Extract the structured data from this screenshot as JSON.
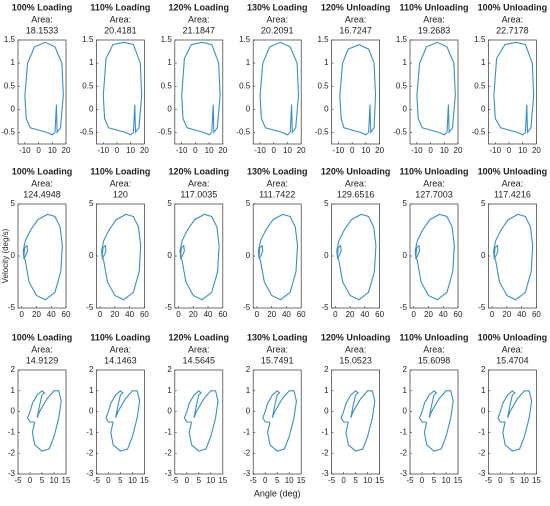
{
  "chart_data": [
    {
      "type": "line",
      "title": "100% Loading",
      "subtitle": "Area:",
      "area": 18.1533,
      "color": "#3a8fc4",
      "xlim": [
        -15,
        20
      ],
      "ylim": [
        -0.75,
        1.5
      ],
      "xticks": [
        -10,
        0,
        10,
        20
      ],
      "yticks": [
        -0.5,
        0,
        0.5,
        1,
        1.5
      ],
      "x": [
        12,
        13,
        13.5,
        16,
        18,
        17,
        12,
        5,
        -3,
        -8,
        -10,
        -9,
        -6,
        0,
        6,
        10,
        12
      ],
      "values": [
        -0.5,
        0.1,
        -0.5,
        -0.4,
        0.3,
        1.0,
        1.35,
        1.45,
        1.35,
        1.0,
        0.3,
        -0.2,
        -0.4,
        -0.45,
        -0.5,
        -0.55,
        -0.5
      ]
    },
    {
      "type": "line",
      "title": "110% Loading",
      "subtitle": "Area:",
      "area": 20.4181,
      "color": "#3a8fc4",
      "xlim": [
        -15,
        20
      ],
      "ylim": [
        -0.75,
        1.5
      ],
      "xticks": [
        -10,
        0,
        10,
        20
      ],
      "yticks": [
        -0.5,
        0,
        0.5,
        1,
        1.5
      ],
      "x": [
        12,
        13,
        13.5,
        16,
        18,
        17,
        12,
        5,
        -3,
        -8,
        -10,
        -9,
        -6,
        0,
        6,
        10,
        12
      ],
      "values": [
        -0.5,
        0.1,
        -0.5,
        -0.4,
        0.3,
        1.0,
        1.4,
        1.45,
        1.4,
        1.1,
        0.3,
        -0.2,
        -0.4,
        -0.45,
        -0.5,
        -0.55,
        -0.5
      ]
    },
    {
      "type": "line",
      "title": "120% Loading",
      "subtitle": "Area:",
      "area": 21.1847,
      "color": "#3a8fc4",
      "xlim": [
        -15,
        20
      ],
      "ylim": [
        -0.75,
        1.5
      ],
      "xticks": [
        -10,
        0,
        10,
        20
      ],
      "yticks": [
        -0.5,
        0,
        0.5,
        1,
        1.5
      ],
      "x": [
        12,
        13,
        13.5,
        16,
        18,
        17,
        12,
        5,
        -3,
        -8,
        -10,
        -9,
        -6,
        0,
        6,
        10,
        12
      ],
      "values": [
        -0.5,
        0.1,
        -0.5,
        -0.4,
        0.3,
        1.0,
        1.4,
        1.45,
        1.4,
        1.1,
        0.3,
        -0.2,
        -0.4,
        -0.45,
        -0.5,
        -0.55,
        -0.5
      ]
    },
    {
      "type": "line",
      "title": "130% Loading",
      "subtitle": "Area:",
      "area": 20.2091,
      "color": "#3a8fc4",
      "xlim": [
        -15,
        20
      ],
      "ylim": [
        -0.75,
        1.5
      ],
      "xticks": [
        -10,
        0,
        10,
        20
      ],
      "yticks": [
        -0.5,
        0,
        0.5,
        1,
        1.5
      ],
      "x": [
        12,
        13,
        13.5,
        16,
        18,
        17,
        12,
        5,
        -3,
        -8,
        -10,
        -9,
        -6,
        0,
        6,
        10,
        12
      ],
      "values": [
        -0.5,
        0.1,
        -0.5,
        -0.4,
        0.3,
        1.0,
        1.35,
        1.45,
        1.35,
        1.0,
        0.3,
        -0.2,
        -0.4,
        -0.45,
        -0.5,
        -0.55,
        -0.5
      ]
    },
    {
      "type": "line",
      "title": "120% Unloading",
      "subtitle": "Area:",
      "area": 16.7247,
      "color": "#3a8fc4",
      "xlim": [
        -15,
        20
      ],
      "ylim": [
        -0.75,
        1.5
      ],
      "xticks": [
        -10,
        0,
        10,
        20
      ],
      "yticks": [
        -0.5,
        0,
        0.5,
        1,
        1.5
      ],
      "x": [
        12,
        13,
        13.5,
        16,
        17,
        16,
        12,
        5,
        -3,
        -7,
        -9,
        -8,
        -6,
        0,
        6,
        10,
        12
      ],
      "values": [
        -0.5,
        0.1,
        -0.5,
        -0.4,
        0.3,
        1.0,
        1.3,
        1.4,
        1.3,
        1.0,
        0.3,
        -0.2,
        -0.4,
        -0.45,
        -0.5,
        -0.55,
        -0.5
      ]
    },
    {
      "type": "line",
      "title": "110% Unloading",
      "subtitle": "Area:",
      "area": 19.2683,
      "color": "#3a8fc4",
      "xlim": [
        -15,
        20
      ],
      "ylim": [
        -0.75,
        1.5
      ],
      "xticks": [
        -10,
        0,
        10,
        20
      ],
      "yticks": [
        -0.5,
        0,
        0.5,
        1,
        1.5
      ],
      "x": [
        12,
        13,
        13.5,
        16,
        18,
        17,
        12,
        5,
        -3,
        -8,
        -10,
        -9,
        -6,
        0,
        6,
        10,
        12
      ],
      "values": [
        -0.5,
        0.1,
        -0.5,
        -0.4,
        0.3,
        1.0,
        1.35,
        1.45,
        1.35,
        1.0,
        0.3,
        -0.2,
        -0.4,
        -0.45,
        -0.5,
        -0.55,
        -0.5
      ]
    },
    {
      "type": "line",
      "title": "100% Unloading",
      "subtitle": "Area:",
      "area": 22.7178,
      "color": "#3a8fc4",
      "xlim": [
        -15,
        20
      ],
      "ylim": [
        -0.75,
        1.5
      ],
      "xticks": [
        -10,
        0,
        10,
        20
      ],
      "yticks": [
        -0.5,
        0,
        0.5,
        1,
        1.5
      ],
      "x": [
        12,
        13,
        13.5,
        16,
        18,
        17,
        12,
        5,
        -3,
        -9,
        -11,
        -10,
        -6,
        0,
        6,
        10,
        12
      ],
      "values": [
        -0.5,
        0.1,
        -0.5,
        -0.4,
        0.3,
        1.0,
        1.4,
        1.45,
        1.4,
        1.1,
        0.3,
        -0.2,
        -0.4,
        -0.45,
        -0.5,
        -0.55,
        -0.5
      ]
    },
    {
      "type": "line",
      "title": "100% Loading",
      "subtitle": "Area:",
      "area": 124.4948,
      "ylabel": "Velocity (deg/s)",
      "color": "#3a8fc4",
      "xlim": [
        -5,
        60
      ],
      "ylim": [
        -5,
        5
      ],
      "xticks": [
        0,
        20,
        40,
        60
      ],
      "yticks": [
        -5,
        0,
        5
      ],
      "x": [
        5,
        8,
        7,
        4,
        3,
        5,
        10,
        20,
        32,
        45,
        53,
        55,
        52,
        45,
        35,
        22,
        12,
        5,
        2,
        3,
        5
      ],
      "values": [
        0,
        0.5,
        1,
        0.8,
        0,
        -0.5,
        -2.5,
        -3.8,
        -4.2,
        -3.5,
        -1.5,
        1,
        2.8,
        3.8,
        4,
        3.5,
        2.5,
        1.5,
        0.5,
        -0.2,
        0
      ]
    },
    {
      "type": "line",
      "title": "110% Loading",
      "subtitle": "Area:",
      "area": 120,
      "color": "#3a8fc4",
      "xlim": [
        -5,
        60
      ],
      "ylim": [
        -5,
        5
      ],
      "xticks": [
        0,
        20,
        40,
        60
      ],
      "yticks": [
        -5,
        0,
        5
      ],
      "x": [
        5,
        8,
        7,
        4,
        3,
        5,
        10,
        20,
        32,
        45,
        53,
        55,
        52,
        45,
        35,
        22,
        12,
        5,
        2,
        3,
        5
      ],
      "values": [
        0,
        0.5,
        1,
        0.8,
        0,
        -0.5,
        -2.5,
        -3.8,
        -4.2,
        -3.5,
        -1.5,
        1,
        2.8,
        3.8,
        4,
        3.5,
        2.5,
        1.5,
        0.5,
        -0.2,
        0
      ]
    },
    {
      "type": "line",
      "title": "120% Loading",
      "subtitle": "Area:",
      "area": 117.0035,
      "color": "#3a8fc4",
      "xlim": [
        -5,
        60
      ],
      "ylim": [
        -5,
        5
      ],
      "xticks": [
        0,
        20,
        40,
        60
      ],
      "yticks": [
        -5,
        0,
        5
      ],
      "x": [
        5,
        8,
        7,
        4,
        3,
        5,
        10,
        20,
        32,
        45,
        53,
        55,
        52,
        45,
        35,
        22,
        12,
        5,
        2,
        3,
        5
      ],
      "values": [
        0,
        0.5,
        1,
        0.8,
        0,
        -0.5,
        -2.5,
        -3.8,
        -4.2,
        -3.5,
        -1.5,
        1,
        2.8,
        3.8,
        4,
        3.5,
        2.5,
        1.5,
        0.5,
        -0.2,
        0
      ]
    },
    {
      "type": "line",
      "title": "130% Loading",
      "subtitle": "Area:",
      "area": 111.7422,
      "color": "#3a8fc4",
      "xlim": [
        -5,
        60
      ],
      "ylim": [
        -5,
        5
      ],
      "xticks": [
        0,
        20,
        40,
        60
      ],
      "yticks": [
        -5,
        0,
        5
      ],
      "x": [
        5,
        8,
        7,
        4,
        3,
        5,
        10,
        20,
        32,
        45,
        53,
        55,
        52,
        45,
        35,
        22,
        12,
        5,
        2,
        3,
        5
      ],
      "values": [
        0,
        0.5,
        1,
        0.8,
        0,
        -0.5,
        -2.5,
        -3.8,
        -4.2,
        -3.5,
        -1.5,
        1,
        2.8,
        3.8,
        4,
        3.5,
        2.5,
        1.5,
        0.5,
        -0.2,
        0
      ]
    },
    {
      "type": "line",
      "title": "120% Unloading",
      "subtitle": "Area:",
      "area": 129.6516,
      "color": "#3a8fc4",
      "xlim": [
        -5,
        60
      ],
      "ylim": [
        -5,
        5
      ],
      "xticks": [
        0,
        20,
        40,
        60
      ],
      "yticks": [
        -5,
        0,
        5
      ],
      "x": [
        5,
        8,
        7,
        4,
        3,
        5,
        10,
        20,
        32,
        45,
        53,
        55,
        52,
        45,
        35,
        22,
        12,
        5,
        2,
        3,
        5
      ],
      "values": [
        0,
        0.5,
        1,
        0.8,
        0,
        -0.5,
        -2.5,
        -3.8,
        -4.2,
        -3.5,
        -1.5,
        1,
        2.8,
        3.8,
        4,
        3.5,
        2.5,
        1.5,
        0.5,
        -0.2,
        0
      ]
    },
    {
      "type": "line",
      "title": "110% Unloading",
      "subtitle": "Area:",
      "area": 127.7003,
      "color": "#3a8fc4",
      "xlim": [
        -5,
        60
      ],
      "ylim": [
        -5,
        5
      ],
      "xticks": [
        0,
        20,
        40,
        60
      ],
      "yticks": [
        -5,
        0,
        5
      ],
      "x": [
        5,
        8,
        7,
        4,
        3,
        5,
        10,
        20,
        32,
        45,
        53,
        55,
        52,
        45,
        35,
        22,
        12,
        5,
        2,
        3,
        5
      ],
      "values": [
        0,
        0.5,
        1,
        0.8,
        0,
        -0.5,
        -2.5,
        -3.8,
        -4.2,
        -3.5,
        -1.5,
        1,
        2.8,
        3.8,
        4,
        3.5,
        2.5,
        1.5,
        0.5,
        -0.2,
        0
      ]
    },
    {
      "type": "line",
      "title": "100% Unloading",
      "subtitle": "Area:",
      "area": 117.4216,
      "color": "#3a8fc4",
      "xlim": [
        -5,
        60
      ],
      "ylim": [
        -5,
        5
      ],
      "xticks": [
        0,
        20,
        40,
        60
      ],
      "yticks": [
        -5,
        0,
        5
      ],
      "x": [
        5,
        8,
        7,
        4,
        3,
        5,
        10,
        20,
        32,
        45,
        53,
        55,
        52,
        45,
        35,
        22,
        12,
        5,
        2,
        3,
        5
      ],
      "values": [
        0,
        0.5,
        1,
        0.8,
        0,
        -0.5,
        -2.5,
        -3.8,
        -4.2,
        -3.5,
        -1.5,
        1,
        2.8,
        3.8,
        4,
        3.5,
        2.5,
        1.5,
        0.5,
        -0.2,
        0
      ]
    },
    {
      "type": "line",
      "title": "100% Loading",
      "subtitle": "Area:",
      "area": 14.9129,
      "color": "#3a8fc4",
      "xlim": [
        -5,
        15
      ],
      "ylim": [
        -3,
        2
      ],
      "xticks": [
        -5,
        0,
        5,
        10,
        15
      ],
      "yticks": [
        -3,
        -2,
        -1,
        0,
        1,
        2
      ],
      "x": [
        2,
        1,
        2,
        5,
        8,
        10,
        12,
        13,
        12,
        10,
        7,
        4,
        3,
        4,
        5,
        6,
        5,
        3,
        1,
        0,
        -1,
        0,
        2
      ],
      "values": [
        -0.5,
        -1,
        -1.6,
        -1.9,
        -1.8,
        -1.2,
        -0.3,
        0.5,
        1,
        1,
        0.6,
        0,
        -0.3,
        0.3,
        0.8,
        0.9,
        1.0,
        0.8,
        0.4,
        0,
        -0.3,
        -0.5,
        -0.5
      ]
    },
    {
      "type": "line",
      "title": "110% Loading",
      "subtitle": "Area:",
      "area": 14.1463,
      "color": "#3a8fc4",
      "xlim": [
        -5,
        15
      ],
      "ylim": [
        -3,
        2
      ],
      "xticks": [
        -5,
        0,
        5,
        10,
        15
      ],
      "yticks": [
        -3,
        -2,
        -1,
        0,
        1,
        2
      ],
      "x": [
        2,
        1,
        2,
        5,
        8,
        10,
        12,
        13,
        12,
        10,
        7,
        4,
        3,
        4,
        5,
        6,
        5,
        3,
        1,
        0,
        -1,
        0,
        2
      ],
      "values": [
        -0.5,
        -1,
        -1.6,
        -1.9,
        -1.8,
        -1.2,
        -0.3,
        0.5,
        1,
        1,
        0.6,
        0,
        -0.3,
        0.3,
        0.8,
        0.9,
        1.0,
        0.8,
        0.4,
        0,
        -0.3,
        -0.5,
        -0.5
      ]
    },
    {
      "type": "line",
      "title": "120% Loading",
      "subtitle": "Area:",
      "area": 14.5645,
      "color": "#3a8fc4",
      "xlim": [
        -5,
        15
      ],
      "ylim": [
        -3,
        2
      ],
      "xticks": [
        -5,
        0,
        5,
        10,
        15
      ],
      "yticks": [
        -3,
        -2,
        -1,
        0,
        1,
        2
      ],
      "x": [
        2,
        1,
        2,
        5,
        8,
        10,
        12,
        13,
        12,
        10,
        7,
        4,
        3,
        4,
        5,
        6,
        5,
        3,
        1,
        0,
        -1,
        0,
        2
      ],
      "values": [
        -0.5,
        -1,
        -1.6,
        -1.9,
        -1.8,
        -1.2,
        -0.3,
        0.5,
        1,
        1,
        0.6,
        0,
        -0.3,
        0.3,
        0.8,
        0.9,
        1.0,
        0.8,
        0.4,
        0,
        -0.3,
        -0.5,
        -0.5
      ]
    },
    {
      "type": "line",
      "title": "130% Loading",
      "subtitle": "Area:",
      "area": 15.7491,
      "xlabel": "Angle (deg)",
      "color": "#3a8fc4",
      "xlim": [
        -5,
        15
      ],
      "ylim": [
        -3,
        2
      ],
      "xticks": [
        -5,
        0,
        5,
        10,
        15
      ],
      "yticks": [
        -3,
        -2,
        -1,
        0,
        1,
        2
      ],
      "x": [
        2,
        1,
        2,
        5,
        8,
        10,
        12,
        13,
        12,
        10,
        7,
        4,
        3,
        4,
        5,
        6,
        5,
        3,
        1,
        0,
        -1,
        0,
        2
      ],
      "values": [
        -0.5,
        -1,
        -1.6,
        -1.9,
        -1.8,
        -1.2,
        -0.3,
        0.5,
        1,
        1,
        0.6,
        0,
        -0.3,
        0.3,
        0.8,
        0.9,
        1.0,
        0.8,
        0.4,
        0,
        -0.3,
        -0.5,
        -0.5
      ]
    },
    {
      "type": "line",
      "title": "120% Unloading",
      "subtitle": "Area:",
      "area": 15.0523,
      "color": "#3a8fc4",
      "xlim": [
        -5,
        15
      ],
      "ylim": [
        -3,
        2
      ],
      "xticks": [
        -5,
        0,
        5,
        10,
        15
      ],
      "yticks": [
        -3,
        -2,
        -1,
        0,
        1,
        2
      ],
      "x": [
        2,
        1,
        2,
        5,
        8,
        10,
        12,
        13,
        12,
        10,
        7,
        4,
        3,
        4,
        5,
        6,
        5,
        3,
        1,
        0,
        -1,
        0,
        2
      ],
      "values": [
        -0.5,
        -1,
        -1.6,
        -1.9,
        -1.8,
        -1.2,
        -0.3,
        0.5,
        1,
        1,
        0.6,
        0,
        -0.3,
        0.3,
        0.8,
        0.9,
        1.0,
        0.8,
        0.4,
        0,
        -0.3,
        -0.5,
        -0.5
      ]
    },
    {
      "type": "line",
      "title": "110% Unloading",
      "subtitle": "Area:",
      "area": 15.6098,
      "color": "#3a8fc4",
      "xlim": [
        -5,
        15
      ],
      "ylim": [
        -3,
        2
      ],
      "xticks": [
        -5,
        0,
        5,
        10,
        15
      ],
      "yticks": [
        -3,
        -2,
        -1,
        0,
        1,
        2
      ],
      "x": [
        2,
        1,
        2,
        5,
        8,
        10,
        12,
        13,
        12,
        10,
        7,
        4,
        3,
        4,
        5,
        6,
        5,
        3,
        1,
        0,
        -1,
        0,
        2
      ],
      "values": [
        -0.5,
        -1,
        -1.6,
        -1.9,
        -1.8,
        -1.2,
        -0.3,
        0.5,
        1,
        1,
        0.6,
        0,
        -0.3,
        0.3,
        0.8,
        0.9,
        1.0,
        0.8,
        0.4,
        0,
        -0.3,
        -0.5,
        -0.5
      ]
    },
    {
      "type": "line",
      "title": "100% Unloading",
      "subtitle": "Area:",
      "area": 15.4704,
      "color": "#3a8fc4",
      "xlim": [
        -5,
        15
      ],
      "ylim": [
        -3,
        2
      ],
      "xticks": [
        -5,
        0,
        5,
        10,
        15
      ],
      "yticks": [
        -3,
        -2,
        -1,
        0,
        1,
        2
      ],
      "x": [
        2,
        1,
        2,
        5,
        8,
        10,
        12,
        13,
        12,
        10,
        7,
        4,
        3,
        4,
        5,
        6,
        5,
        3,
        1,
        0,
        -1,
        0,
        2
      ],
      "values": [
        -0.5,
        -1,
        -1.6,
        -1.9,
        -1.8,
        -1.2,
        -0.3,
        0.5,
        1,
        1,
        0.6,
        0,
        -0.3,
        0.3,
        0.8,
        0.9,
        1.0,
        0.8,
        0.4,
        0,
        -0.3,
        -0.5,
        -0.5
      ]
    }
  ]
}
